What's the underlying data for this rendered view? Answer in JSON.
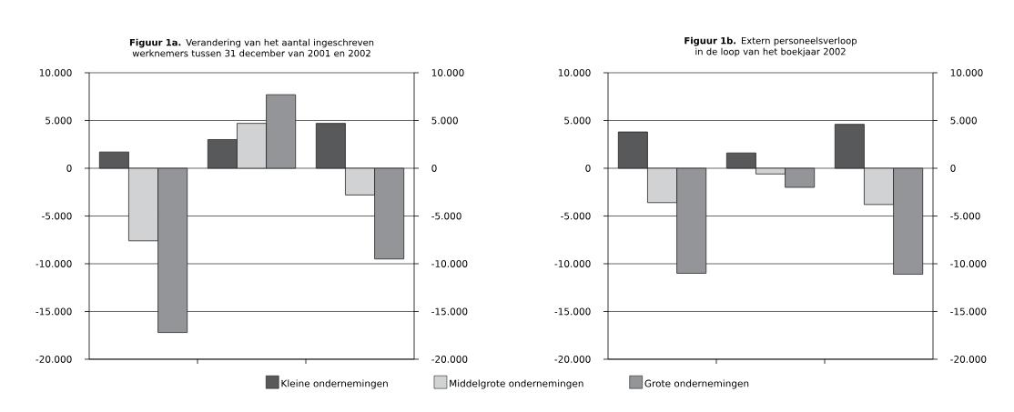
{
  "chart_data": [
    {
      "type": "bar",
      "title": "**Figuur 1a.** Verandering van het aantal ingeschreven werknemers tussen 31 december van 2001 en 2002",
      "categories": [
        null,
        null,
        null
      ],
      "series": [
        {
          "name": "Kleine ondernemingen",
          "color": "#58595b",
          "values": [
            1700,
            3000,
            4700
          ]
        },
        {
          "name": "Middelgrote ondernemingen",
          "color": "#d1d2d4",
          "values": [
            -7600,
            4700,
            -2800
          ]
        },
        {
          "name": "Grote ondernemingen",
          "color": "#939598",
          "values": [
            -17200,
            7700,
            -9500
          ]
        }
      ],
      "ylim": [
        -20000,
        10000
      ],
      "yticks": [
        {
          "value": -20000,
          "label": "-20.000"
        },
        {
          "value": -15000,
          "label": "-15.000"
        },
        {
          "value": -10000,
          "label": "-10.000"
        },
        {
          "value": -5000,
          "label": "-5.000"
        },
        0,
        {
          "value": 5000,
          "label": "5.000"
        },
        {
          "value": 10000,
          "label": "10.000"
        }
      ],
      "y2lim": [
        -20000,
        10000
      ],
      "y2ticks": [
        {
          "value": -20000,
          "label": "-20.000"
        },
        {
          "value": -15000,
          "label": "-15.000"
        },
        {
          "value": -10000,
          "label": "-10.000"
        },
        {
          "value": -5000,
          "label": "-5.000"
        },
        0,
        {
          "value": 5000,
          "label": "5.000"
        },
        {
          "value": 10000,
          "label": "10.000"
        }
      ],
      "grid": "y",
      "legend": "bottom"
    },
    {
      "type": "bar",
      "title": "**Figuur 1b.** Extern personeelsverloop in de loop van het boekjaar 2002",
      "categories": [
        null,
        null,
        null
      ],
      "series": [
        {
          "color": "#58595b",
          "values": [
            3800,
            1600,
            4600
          ]
        },
        {
          "color": "#d1d2d4",
          "values": [
            -3600,
            -600,
            -3800
          ]
        },
        {
          "color": "#939598",
          "values": [
            -11000,
            -2000,
            -11100
          ]
        }
      ],
      "ylim": [
        -20000,
        10000
      ],
      "yticks": [
        {
          "value": -20000,
          "label": "-20.000"
        },
        {
          "value": -15000,
          "label": "-15.000"
        },
        {
          "value": -10000,
          "label": "-10.000"
        },
        {
          "value": -5000,
          "label": "-5.000"
        },
        0,
        {
          "value": 5000,
          "label": "5.000"
        },
        {
          "value": 10000,
          "label": "10.000"
        }
      ],
      "y2lim": [
        -20000,
        10000
      ],
      "y2ticks": [
        {
          "value": -20000,
          "label": "-20.000"
        },
        {
          "value": -15000,
          "label": "-15.000"
        },
        {
          "value": -10000,
          "label": "-10.000"
        },
        {
          "value": -5000,
          "label": "-5.000"
        },
        0,
        {
          "value": 5000,
          "label": "5.000"
        },
        {
          "value": 10000,
          "label": "10.000"
        }
      ],
      "grid": "y"
    }
  ]
}
